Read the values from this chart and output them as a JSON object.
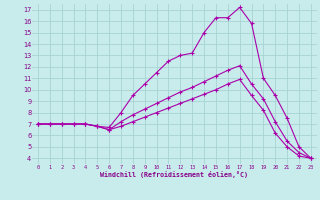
{
  "xlabel": "Windchill (Refroidissement éolien,°C)",
  "xlim": [
    -0.5,
    23.5
  ],
  "ylim": [
    3.5,
    17.5
  ],
  "xticks": [
    0,
    1,
    2,
    3,
    4,
    5,
    6,
    7,
    8,
    9,
    10,
    11,
    12,
    13,
    14,
    15,
    16,
    17,
    18,
    19,
    20,
    21,
    22,
    23
  ],
  "yticks": [
    4,
    5,
    6,
    7,
    8,
    9,
    10,
    11,
    12,
    13,
    14,
    15,
    16,
    17
  ],
  "background_color": "#c8ecec",
  "grid_color": "#a8d4d4",
  "line_color": "#aa00aa",
  "tick_color": "#880088",
  "lines": [
    {
      "x": [
        0,
        1,
        2,
        3,
        4,
        5,
        6,
        7,
        8,
        9,
        10,
        11,
        12,
        13,
        14,
        15,
        16,
        17,
        18,
        19,
        20,
        21,
        22,
        23
      ],
      "y": [
        7.0,
        7.0,
        7.0,
        7.0,
        7.0,
        6.8,
        6.7,
        8.0,
        9.5,
        10.5,
        11.5,
        12.5,
        13.0,
        13.2,
        15.0,
        16.3,
        16.3,
        17.2,
        15.8,
        11.0,
        9.5,
        7.5,
        5.0,
        4.0
      ]
    },
    {
      "x": [
        0,
        1,
        2,
        3,
        4,
        5,
        6,
        7,
        8,
        9,
        10,
        11,
        12,
        13,
        14,
        15,
        16,
        17,
        18,
        19,
        20,
        21,
        22,
        23
      ],
      "y": [
        7.0,
        7.0,
        7.0,
        7.0,
        7.0,
        6.8,
        6.5,
        7.2,
        7.8,
        8.3,
        8.8,
        9.3,
        9.8,
        10.2,
        10.7,
        11.2,
        11.7,
        12.1,
        10.5,
        9.2,
        7.2,
        5.5,
        4.5,
        4.0
      ]
    },
    {
      "x": [
        0,
        1,
        2,
        3,
        4,
        5,
        6,
        7,
        8,
        9,
        10,
        11,
        12,
        13,
        14,
        15,
        16,
        17,
        18,
        19,
        20,
        21,
        22,
        23
      ],
      "y": [
        7.0,
        7.0,
        7.0,
        7.0,
        7.0,
        6.8,
        6.5,
        6.8,
        7.2,
        7.6,
        8.0,
        8.4,
        8.8,
        9.2,
        9.6,
        10.0,
        10.5,
        10.9,
        9.5,
        8.2,
        6.2,
        5.0,
        4.2,
        4.0
      ]
    }
  ]
}
